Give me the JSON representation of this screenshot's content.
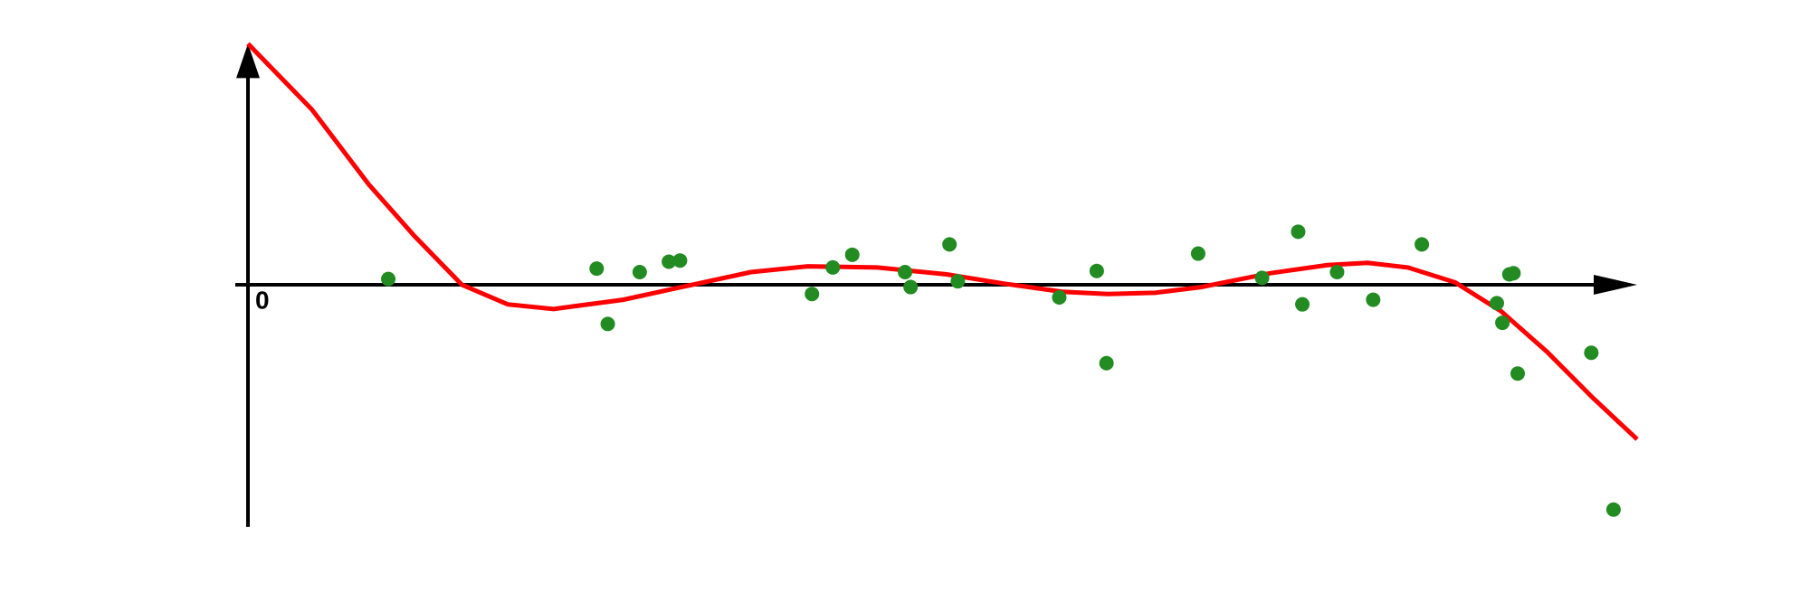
{
  "chart_data": {
    "type": "scatter",
    "xlim": [
      0,
      10
    ],
    "ylim": [
      -2.1,
      2.09
    ],
    "xticks": [
      0
    ],
    "points": {
      "color": "#228b22",
      "x": [
        1.01,
        2.51,
        2.59,
        2.82,
        3.03,
        3.11,
        4.06,
        4.21,
        4.35,
        4.73,
        4.77,
        5.05,
        5.11,
        5.84,
        6.11,
        6.18,
        6.84,
        7.3,
        7.56,
        7.59,
        7.84,
        8.1,
        8.45,
        8.99,
        9.03,
        9.08,
        9.11,
        9.14,
        9.67,
        9.83
      ],
      "y": [
        0.05,
        0.14,
        -0.34,
        0.11,
        0.2,
        0.21,
        -0.08,
        0.15,
        0.26,
        0.11,
        -0.02,
        0.35,
        0.03,
        -0.11,
        0.12,
        -0.68,
        0.27,
        0.06,
        0.46,
        -0.17,
        0.11,
        -0.13,
        0.35,
        -0.16,
        -0.33,
        0.09,
        0.1,
        -0.77,
        -0.59,
        -1.95
      ]
    },
    "curve": {
      "color": "#ff0000",
      "x": [
        0,
        0.46,
        0.87,
        1.2,
        1.54,
        1.87,
        2.2,
        2.7,
        3.12,
        3.62,
        4.03,
        4.53,
        5.03,
        5.44,
        5.86,
        6.19,
        6.53,
        6.86,
        7.36,
        7.77,
        8.06,
        8.35,
        8.69,
        9.02,
        9.35,
        9.68,
        10.0
      ],
      "y": [
        2.09,
        1.52,
        0.87,
        0.42,
        0,
        -0.17,
        -0.21,
        -0.13,
        -0.02,
        0.11,
        0.16,
        0.15,
        0.09,
        0.01,
        -0.06,
        -0.08,
        -0.07,
        -0.02,
        0.1,
        0.17,
        0.19,
        0.15,
        0.02,
        -0.23,
        -0.58,
        -0.98,
        -1.34
      ]
    }
  }
}
